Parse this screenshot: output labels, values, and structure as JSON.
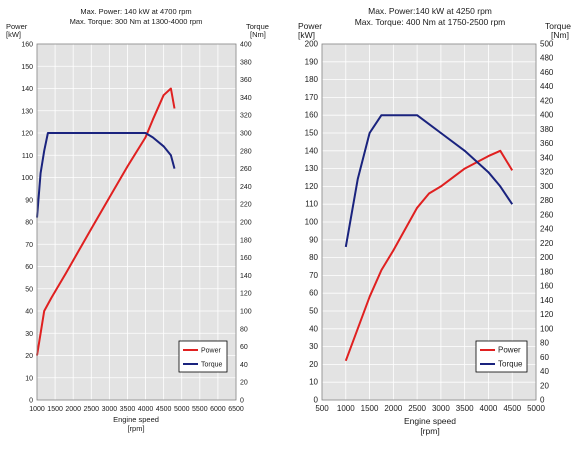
{
  "colors": {
    "power": "#e02020",
    "torque": "#1a237e",
    "plot_bg": "#e3e3e3",
    "grid": "#ffffff"
  },
  "chart_data": [
    {
      "type": "line",
      "title": "Max. Power: 140 kW at 4700 rpm",
      "subtitle": "Max. Torque: 300 Nm at 1300-4000 rpm",
      "xlabel": "Engine speed",
      "xunit": "[rpm]",
      "ylabel_left": "Power",
      "yunit_left": "[kW]",
      "ylabel_right": "Torque",
      "yunit_right": "[Nm]",
      "xlim": [
        1000,
        6500
      ],
      "xticks": [
        1000,
        1500,
        2000,
        2500,
        3000,
        3500,
        4000,
        4500,
        5000,
        5500,
        6000,
        6500
      ],
      "ylim_left": [
        0,
        160
      ],
      "ylim_right": [
        0,
        400
      ],
      "grid": true,
      "legend_position": "bottom-right",
      "series": [
        {
          "name": "Power",
          "axis": "left",
          "color": "#e02020",
          "x": [
            1000,
            1100,
            1200,
            1400,
            1800,
            2500,
            3000,
            3500,
            4000,
            4200,
            4500,
            4700,
            4800
          ],
          "y": [
            20,
            30,
            40,
            46,
            57,
            77,
            91,
            105,
            118,
            126,
            137,
            140,
            131
          ]
        },
        {
          "name": "Torque",
          "axis": "right",
          "color": "#1a237e",
          "x": [
            1000,
            1100,
            1200,
            1300,
            2000,
            3000,
            4000,
            4200,
            4500,
            4700,
            4800
          ],
          "y": [
            205,
            255,
            280,
            300,
            300,
            300,
            300,
            295,
            285,
            275,
            260
          ]
        }
      ]
    },
    {
      "type": "line",
      "title": "Max. Power:140 kW at 4250 rpm",
      "subtitle": "Max. Torque: 400 Nm at 1750-2500 rpm",
      "xlabel": "Engine speed",
      "xunit": "[rpm]",
      "ylabel_left": "Power",
      "yunit_left": "[kW]",
      "ylabel_right": "Torque",
      "yunit_right": "[Nm]",
      "xlim": [
        500,
        5000
      ],
      "xticks": [
        500,
        1000,
        1500,
        2000,
        2500,
        3000,
        3500,
        4000,
        4500,
        5000
      ],
      "ylim_left": [
        0,
        200
      ],
      "ylim_right": [
        0,
        500
      ],
      "grid": true,
      "legend_position": "bottom-right",
      "series": [
        {
          "name": "Power",
          "axis": "left",
          "color": "#e02020",
          "x": [
            1000,
            1250,
            1500,
            1750,
            2000,
            2250,
            2500,
            2750,
            3000,
            3500,
            4000,
            4250,
            4500
          ],
          "y": [
            22,
            40,
            58,
            73,
            84,
            96,
            108,
            116,
            120,
            130,
            137,
            140,
            129
          ]
        },
        {
          "name": "Torque",
          "axis": "right",
          "color": "#1a237e",
          "x": [
            1000,
            1250,
            1500,
            1750,
            2000,
            2250,
            2500,
            3000,
            3500,
            4000,
            4250,
            4500
          ],
          "y": [
            215,
            310,
            375,
            400,
            400,
            400,
            400,
            375,
            350,
            320,
            300,
            275
          ]
        }
      ]
    }
  ]
}
